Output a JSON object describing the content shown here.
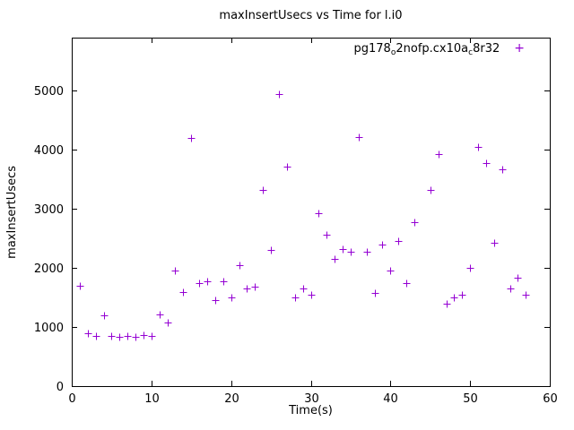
{
  "chart_data": {
    "type": "scatter",
    "title": "maxInsertUsecs vs Time for l.i0",
    "xlabel": "Time(s)",
    "ylabel": "maxInsertUsecs",
    "xlim": [
      0,
      60
    ],
    "ylim": [
      0,
      5900
    ],
    "xticks": [
      0,
      10,
      20,
      30,
      40,
      50,
      60
    ],
    "yticks": [
      0,
      1000,
      2000,
      3000,
      4000,
      5000
    ],
    "grid": false,
    "marker": "plus",
    "marker_color": "#9400d3",
    "axis_color": "#000000",
    "legend": {
      "position": "top-right-inside",
      "label": "pg178_o2nofp.cx10a_c8r32",
      "marker_glyph": "+",
      "parts": [
        {
          "text": "pg178",
          "sub": false
        },
        {
          "text": "o",
          "sub": true
        },
        {
          "text": "2nofp.cx10a",
          "sub": false
        },
        {
          "text": "c",
          "sub": true
        },
        {
          "text": "8r32",
          "sub": false
        }
      ]
    },
    "points": [
      [
        1,
        1700
      ],
      [
        2,
        900
      ],
      [
        3,
        850
      ],
      [
        4,
        1200
      ],
      [
        5,
        850
      ],
      [
        6,
        830
      ],
      [
        7,
        850
      ],
      [
        8,
        830
      ],
      [
        9,
        860
      ],
      [
        10,
        850
      ],
      [
        11,
        1220
      ],
      [
        12,
        1080
      ],
      [
        13,
        1950
      ],
      [
        14,
        1600
      ],
      [
        15,
        4200
      ],
      [
        16,
        1750
      ],
      [
        17,
        1780
      ],
      [
        18,
        1450
      ],
      [
        19,
        1780
      ],
      [
        20,
        1500
      ],
      [
        21,
        2050
      ],
      [
        22,
        1650
      ],
      [
        23,
        1680
      ],
      [
        24,
        3320
      ],
      [
        25,
        2300
      ],
      [
        26,
        4950
      ],
      [
        27,
        3720
      ],
      [
        28,
        1500
      ],
      [
        29,
        1650
      ],
      [
        30,
        1550
      ],
      [
        31,
        2930
      ],
      [
        32,
        2560
      ],
      [
        33,
        2150
      ],
      [
        34,
        2320
      ],
      [
        35,
        2280
      ],
      [
        36,
        4220
      ],
      [
        37,
        2280
      ],
      [
        38,
        1580
      ],
      [
        39,
        2400
      ],
      [
        40,
        1950
      ],
      [
        41,
        2450
      ],
      [
        42,
        1750
      ],
      [
        43,
        2780
      ],
      [
        45,
        3320
      ],
      [
        46,
        3930
      ],
      [
        47,
        1400
      ],
      [
        48,
        1500
      ],
      [
        49,
        1550
      ],
      [
        50,
        2000
      ],
      [
        51,
        4050
      ],
      [
        52,
        3780
      ],
      [
        53,
        2430
      ],
      [
        54,
        3670
      ],
      [
        55,
        1650
      ],
      [
        56,
        1830
      ],
      [
        57,
        1550
      ]
    ]
  }
}
